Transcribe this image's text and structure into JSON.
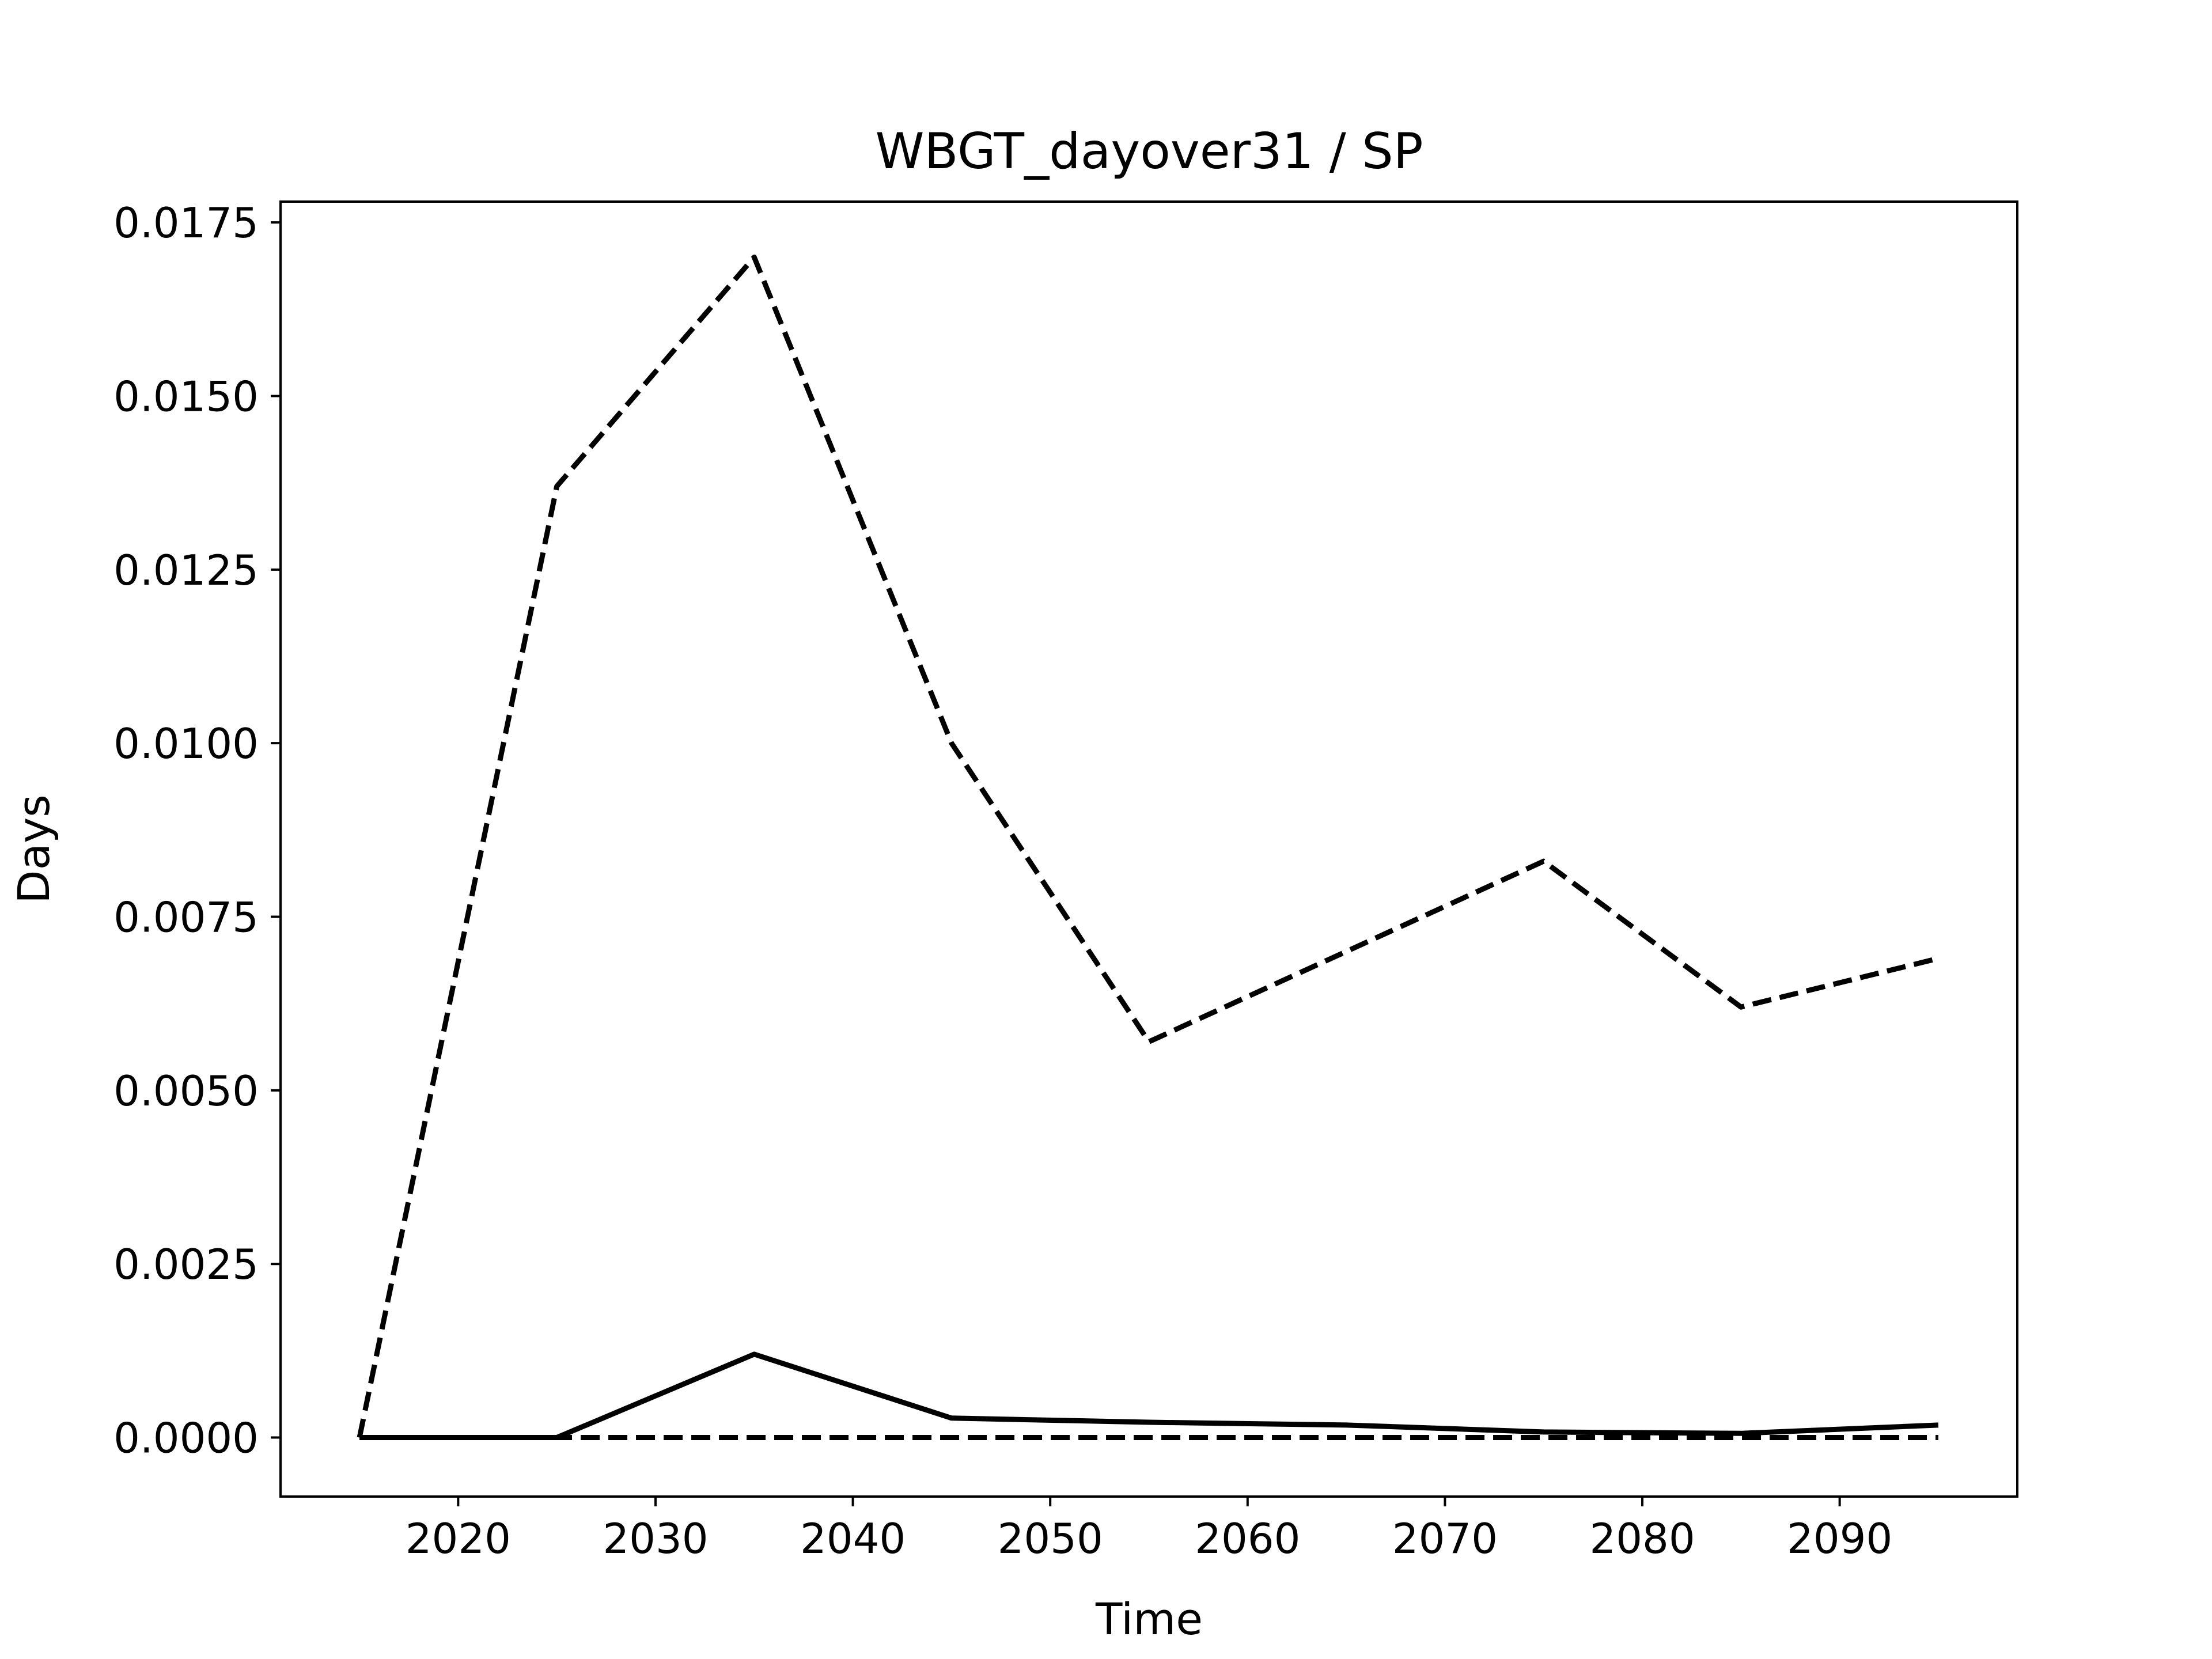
{
  "chart_data": {
    "type": "line",
    "title": "WBGT_dayover31 / SP",
    "xlabel": "Time",
    "ylabel": "Days",
    "xlim": [
      2011,
      2099
    ],
    "ylim": [
      -0.00085,
      0.0178
    ],
    "x_ticks": [
      2020,
      2030,
      2040,
      2050,
      2060,
      2070,
      2080,
      2090
    ],
    "x_tick_labels": [
      "2020",
      "2030",
      "2040",
      "2050",
      "2060",
      "2070",
      "2080",
      "2090"
    ],
    "y_ticks": [
      0.0,
      0.0025,
      0.005,
      0.0075,
      0.01,
      0.0125,
      0.015,
      0.0175
    ],
    "y_tick_labels": [
      "0.0000",
      "0.0025",
      "0.0050",
      "0.0075",
      "0.0100",
      "0.0125",
      "0.0150",
      "0.0175"
    ],
    "grid": false,
    "line_color": "#000000",
    "x": [
      2015,
      2025,
      2035,
      2045,
      2055,
      2065,
      2075,
      2085,
      2095
    ],
    "series": [
      {
        "style": "dashed",
        "values": [
          0.0,
          0.0137,
          0.017,
          0.01,
          0.0057,
          0.007,
          0.0083,
          0.0062,
          0.0069
        ]
      },
      {
        "style": "solid",
        "values": [
          0.0,
          0.0,
          0.0012,
          0.00028,
          0.00022,
          0.00018,
          8e-05,
          6e-05,
          0.00018
        ]
      },
      {
        "style": "dashed",
        "values": [
          0.0,
          0.0,
          0.0,
          0.0,
          0.0,
          0.0,
          0.0,
          0.0,
          0.0
        ]
      }
    ]
  }
}
